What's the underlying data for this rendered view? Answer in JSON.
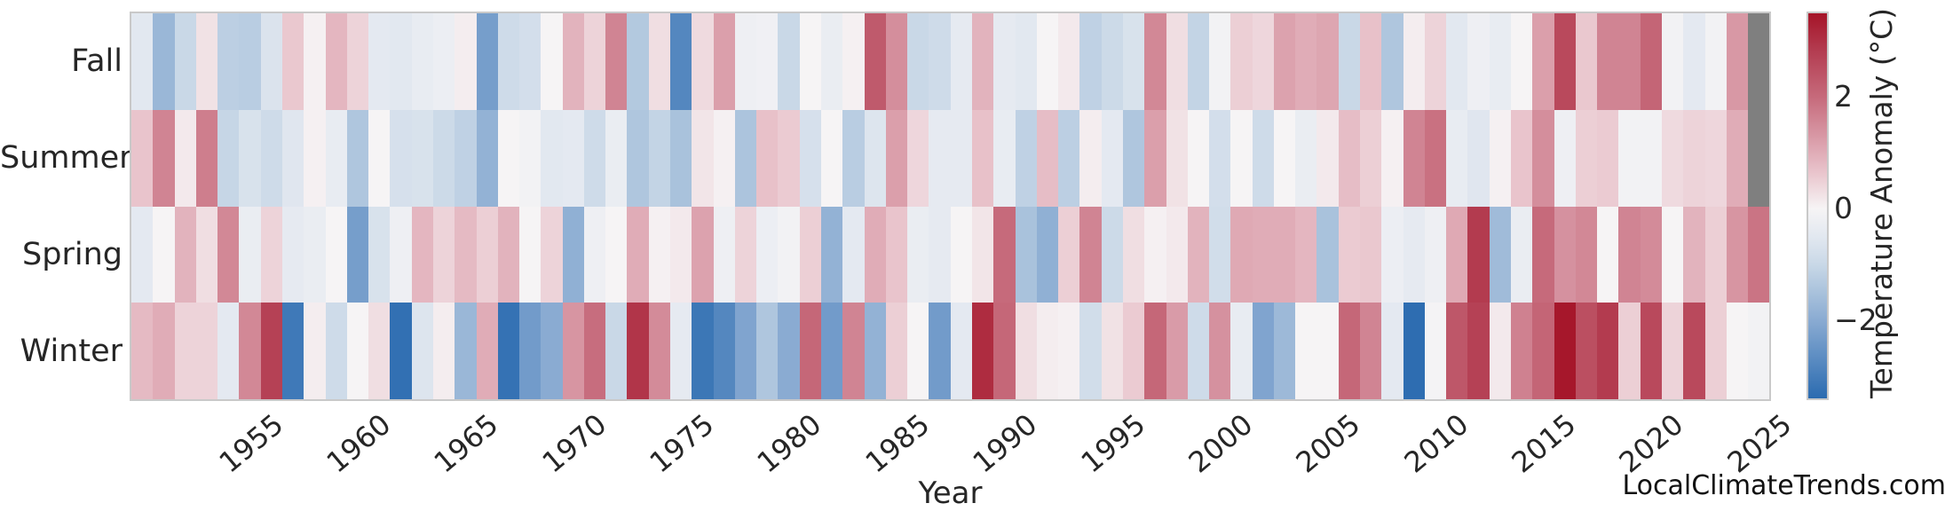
{
  "figure": {
    "watermark": "LocalClimateTrends.com",
    "background": "#ffffff"
  },
  "chart_data": {
    "type": "heatmap",
    "title": "",
    "xlabel": "Year",
    "ylabel": "",
    "rows": [
      "Fall",
      "Summer",
      "Spring",
      "Winter"
    ],
    "year_start": 1950,
    "year_end": 2025,
    "x_ticks": [
      1955,
      1960,
      1965,
      1970,
      1975,
      1980,
      1985,
      1990,
      1995,
      2000,
      2005,
      2010,
      2015,
      2020,
      2025
    ],
    "grid": false,
    "legend_position": "right-colorbar",
    "missing_color": "#7f7f7f",
    "colorbar": {
      "label": "Temperature Anomaly (°C)",
      "ticks": [
        2,
        0,
        -2
      ],
      "vmin": -3.4,
      "vmax": 3.5,
      "anchors": [
        [
          -3.4,
          "#2b6bb0"
        ],
        [
          -2.6,
          "#6190c4"
        ],
        [
          -2.0,
          "#8aabd2"
        ],
        [
          -1.5,
          "#a9c2dc"
        ],
        [
          -1.0,
          "#c9d8e7"
        ],
        [
          -0.5,
          "#e2e8f0"
        ],
        [
          0.0,
          "#f6f4f5"
        ],
        [
          0.65,
          "#e9c4cc"
        ],
        [
          1.3,
          "#d898a5"
        ],
        [
          2.0,
          "#c66a7b"
        ],
        [
          2.8,
          "#b43e52"
        ],
        [
          3.5,
          "#a51428"
        ]
      ]
    },
    "series": [
      {
        "name": "Fall",
        "values": [
          -0.5,
          -1.75,
          -1.0,
          0.25,
          -1.2,
          -1.25,
          -0.65,
          0.6,
          0.05,
          0.85,
          0.45,
          -0.45,
          -0.5,
          -0.35,
          -0.25,
          0.1,
          -2.3,
          -0.9,
          -0.8,
          0.0,
          0.9,
          0.45,
          1.6,
          -1.35,
          0.3,
          -2.8,
          0.35,
          1.2,
          -0.2,
          -0.15,
          -1.0,
          0.0,
          -0.3,
          0.05,
          2.3,
          1.45,
          -1.0,
          -0.9,
          -0.4,
          0.9,
          -0.4,
          -0.5,
          0.0,
          0.15,
          -1.15,
          -0.95,
          -0.7,
          1.55,
          0.3,
          -1.1,
          -0.1,
          0.5,
          0.4,
          1.15,
          1.0,
          1.1,
          -1.0,
          0.7,
          -1.4,
          0.1,
          0.45,
          -0.5,
          -0.2,
          -0.35,
          0.0,
          1.2,
          2.6,
          0.6,
          1.6,
          1.6,
          2.1,
          -0.1,
          -0.45,
          -0.1,
          1.3,
          null
        ]
      },
      {
        "name": "Summer",
        "values": [
          0.65,
          1.6,
          0.15,
          1.7,
          -1.05,
          -0.7,
          -0.9,
          -0.55,
          0.05,
          -0.35,
          -1.4,
          0.0,
          -0.75,
          -0.7,
          -0.95,
          -1.15,
          -1.85,
          0.0,
          -0.1,
          -0.5,
          -0.45,
          -0.9,
          -0.3,
          -1.4,
          -1.1,
          -1.5,
          0.2,
          0.05,
          -1.45,
          0.7,
          0.55,
          -0.75,
          0.0,
          -1.25,
          -0.6,
          1.2,
          0.4,
          -0.4,
          -0.4,
          0.7,
          -0.35,
          -1.15,
          0.75,
          -1.2,
          0.1,
          -0.45,
          -1.4,
          1.2,
          0.25,
          0.0,
          -0.8,
          0.0,
          -0.9,
          0.0,
          -0.3,
          0.15,
          0.75,
          0.5,
          0.05,
          1.6,
          1.9,
          -0.35,
          -0.55,
          0.05,
          0.65,
          1.45,
          -0.2,
          0.5,
          0.55,
          -0.1,
          -0.1,
          0.35,
          0.45,
          0.4,
          1.0,
          null
        ]
      },
      {
        "name": "Spring",
        "values": [
          -0.45,
          0.0,
          0.9,
          0.3,
          1.55,
          -0.3,
          0.45,
          -0.4,
          -0.3,
          0.0,
          -2.3,
          -0.7,
          -0.2,
          0.85,
          0.45,
          0.8,
          0.5,
          0.9,
          0.0,
          0.45,
          -1.9,
          -0.2,
          0.0,
          1.0,
          0.05,
          0.15,
          1.15,
          -0.2,
          0.45,
          -0.25,
          -0.1,
          0.5,
          -1.85,
          -0.45,
          1.0,
          0.65,
          -0.3,
          -0.4,
          0.0,
          0.2,
          2.0,
          -1.5,
          -1.9,
          0.5,
          1.6,
          -0.95,
          0.3,
          0.05,
          0.15,
          0.9,
          -0.85,
          1.05,
          1.0,
          1.0,
          0.85,
          -1.5,
          0.55,
          0.6,
          -0.25,
          -0.4,
          -0.2,
          1.05,
          2.85,
          -1.65,
          -0.3,
          2.0,
          1.4,
          1.55,
          0.0,
          1.6,
          1.5,
          0.0,
          0.9,
          0.5,
          1.35,
          1.85
        ]
      },
      {
        "name": "Winter",
        "values": [
          0.8,
          1.0,
          0.45,
          0.45,
          -0.45,
          1.55,
          2.75,
          -3.1,
          0.1,
          -0.9,
          0.0,
          0.3,
          -3.3,
          -0.6,
          0.1,
          -1.75,
          1.0,
          -3.25,
          -2.35,
          -2.0,
          1.35,
          1.95,
          -1.0,
          2.95,
          1.5,
          -0.4,
          -3.15,
          -2.8,
          -2.15,
          -1.4,
          -2.0,
          2.05,
          -2.35,
          1.6,
          -1.85,
          0.5,
          0.0,
          -2.35,
          -0.45,
          3.1,
          2.05,
          0.3,
          0.1,
          0.05,
          -0.85,
          0.25,
          0.55,
          2.05,
          1.25,
          -0.9,
          1.4,
          -0.35,
          -2.15,
          -1.7,
          0.0,
          0.0,
          2.05,
          1.6,
          -0.45,
          -3.35,
          -0.05,
          2.35,
          2.75,
          0.15,
          1.65,
          2.1,
          3.45,
          2.5,
          2.85,
          0.5,
          2.6,
          0.45,
          2.6,
          0.5,
          0.0,
          -0.1
        ]
      }
    ]
  }
}
